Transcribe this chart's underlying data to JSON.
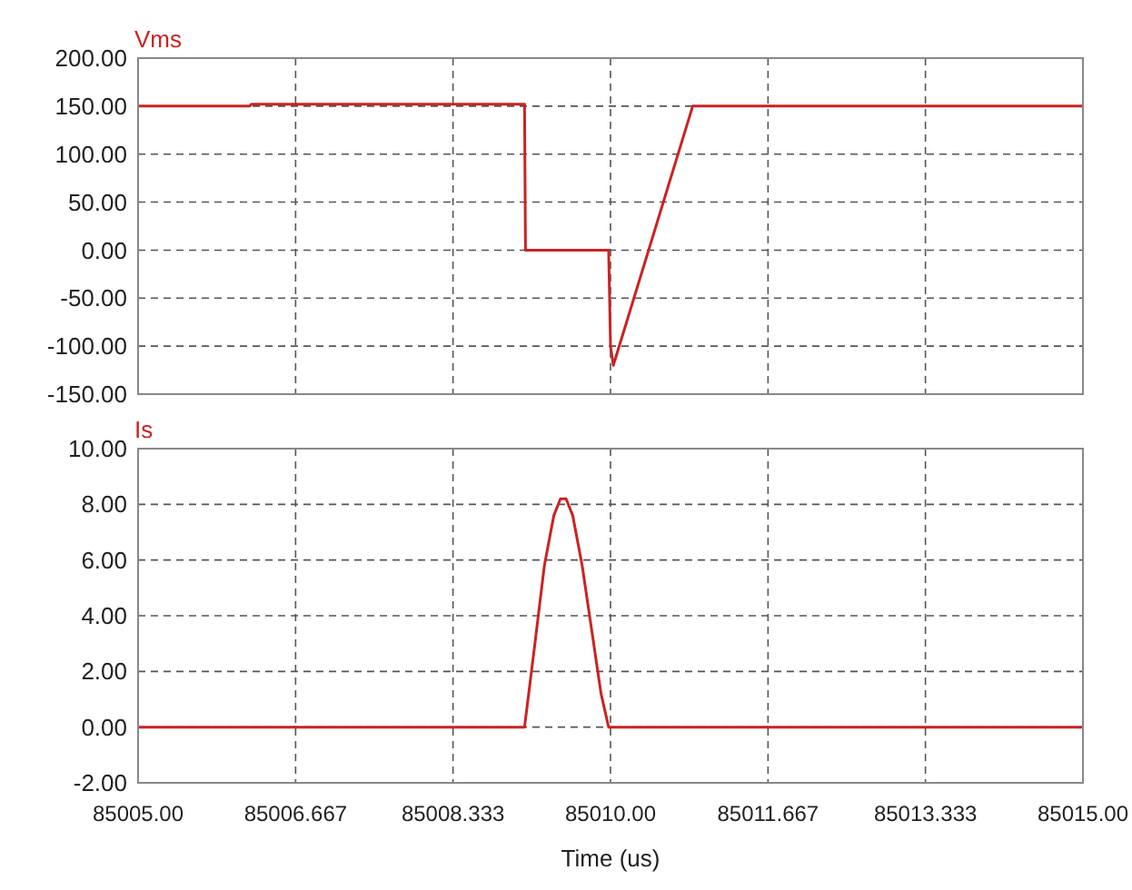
{
  "chart_data": [
    {
      "type": "line",
      "xlim": [
        85005,
        85015
      ],
      "xticks": [
        {
          "value": 85005,
          "label": null
        },
        {
          "value": 85006.667,
          "label": null
        },
        {
          "value": 85008.333,
          "label": null
        },
        {
          "value": 85010,
          "label": null
        },
        {
          "value": 85011.667,
          "label": null
        },
        {
          "value": 85013.333,
          "label": null
        },
        {
          "value": 85015,
          "label": null
        }
      ],
      "ylim": [
        -150,
        200
      ],
      "yticks": [
        {
          "value": -150,
          "label": "-150.00"
        },
        {
          "value": -100,
          "label": "-100.00"
        },
        {
          "value": -50,
          "label": "-50.00"
        },
        {
          "value": 0,
          "label": "0.00"
        },
        {
          "value": 50,
          "label": "50.00"
        },
        {
          "value": 100,
          "label": "100.00"
        },
        {
          "value": 150,
          "label": "150.00"
        },
        {
          "value": 200,
          "label": "200.00"
        }
      ],
      "grid": true,
      "tick_labels": "y",
      "legend": "top left",
      "series": [
        {
          "name": "Vms",
          "color": "#cc2222",
          "x": [
            85005,
            85006.18,
            85006.2,
            85009.09,
            85009.1,
            85009.98,
            85010.0,
            85010.03,
            85010.87,
            85015
          ],
          "values": [
            150,
            150,
            152,
            152,
            0,
            0,
            -100,
            -120,
            150,
            150
          ]
        }
      ]
    },
    {
      "type": "line",
      "xlim": [
        85005,
        85015
      ],
      "xticks": [
        {
          "value": 85005,
          "label": "85005.00"
        },
        {
          "value": 85006.667,
          "label": "85006.667"
        },
        {
          "value": 85008.333,
          "label": "85008.333"
        },
        {
          "value": 85010,
          "label": "85010.00"
        },
        {
          "value": 85011.667,
          "label": "85011.667"
        },
        {
          "value": 85013.333,
          "label": "85013.333"
        },
        {
          "value": 85015,
          "label": "85015.00"
        }
      ],
      "ylim": [
        -2,
        10
      ],
      "yticks": [
        {
          "value": -2,
          "label": "-2.00"
        },
        {
          "value": 0,
          "label": "0.00"
        },
        {
          "value": 2,
          "label": "2.00"
        },
        {
          "value": 4,
          "label": "4.00"
        },
        {
          "value": 6,
          "label": "6.00"
        },
        {
          "value": 8,
          "label": "8.00"
        },
        {
          "value": 10,
          "label": "10.00"
        }
      ],
      "grid": true,
      "legend": "top left",
      "xlabel": "Time (us)",
      "series": [
        {
          "name": "Is",
          "color": "#cc2222",
          "x": [
            85005,
            85009.09,
            85009.2,
            85009.3,
            85009.4,
            85009.47,
            85009.53,
            85009.6,
            85009.7,
            85009.8,
            85009.9,
            85009.98,
            85015
          ],
          "values": [
            0,
            0,
            3.0,
            5.8,
            7.6,
            8.2,
            8.2,
            7.6,
            5.8,
            3.5,
            1.2,
            0,
            0
          ]
        }
      ]
    }
  ]
}
